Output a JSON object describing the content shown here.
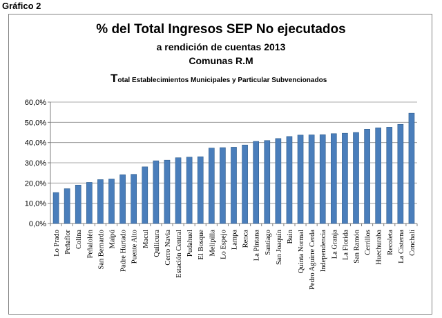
{
  "figure_label": "Gráfico 2",
  "title": {
    "line1": "% del Total Ingresos SEP  No ejecutados",
    "line2": "a rendición de cuentas 2013",
    "line3": "Comunas R.M",
    "line4_cap": "T",
    "line4_rest": "otal Establecimientos Municipales  y Particular Subvencionados"
  },
  "colors": {
    "bar": "#4a7ebb",
    "bar_edge": "#2f5d8c",
    "grid": "#8c8c8c",
    "axis": "#7f7f7f"
  },
  "chart_data": {
    "type": "bar",
    "title": "% del Total Ingresos SEP  No ejecutados",
    "xlabel": "",
    "ylabel": "",
    "ylim": [
      0,
      60
    ],
    "yticks": [
      "0,0%",
      "10,0%",
      "20,0%",
      "30,0%",
      "40,0%",
      "50,0%",
      "60,0%"
    ],
    "grid": true,
    "legend": "none",
    "categories": [
      "Lo Prado",
      "Peñaflor",
      "Colina",
      "Peñalolén",
      "San Bernardo",
      "Maipú",
      "Padre Hurtado",
      "Puente Alto",
      "Macul",
      "Quilicura",
      "Cerro Navia",
      "Estación Central",
      "Pudahuel",
      "El Bosque",
      "Melipilla",
      "Lo Espejo",
      "Lampa",
      "Renca",
      "La Pintana",
      "Santiago",
      "San Joaquín",
      "Buin",
      "Quinta Normal",
      "Pedro Aguirre Cerda",
      "Independencia",
      "La Granja",
      "La Florida",
      "San Ramón",
      "Cerrillos",
      "Huechuraba",
      "Recoleta",
      "La Cisterna",
      "Conchalí"
    ],
    "values": [
      15.3,
      17.2,
      19.0,
      20.3,
      21.7,
      22.0,
      24.1,
      24.3,
      28.0,
      31.0,
      31.3,
      32.5,
      32.8,
      33.0,
      37.3,
      37.5,
      37.7,
      38.8,
      40.6,
      41.0,
      42.0,
      43.0,
      43.7,
      43.8,
      43.9,
      44.4,
      44.6,
      45.0,
      46.6,
      47.3,
      47.6,
      49.0,
      54.5
    ]
  }
}
